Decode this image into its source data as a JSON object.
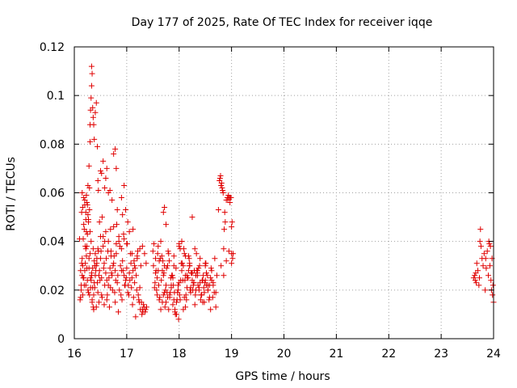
{
  "chart_data": {
    "type": "scatter",
    "title": "Day 177 of 2025, Rate Of TEC Index for receiver iqqe",
    "xlabel": "GPS time / hours",
    "ylabel": "ROTI / TECUs",
    "xlim": [
      16,
      24
    ],
    "ylim": [
      0,
      0.12
    ],
    "xticks": [
      16,
      17,
      18,
      19,
      20,
      21,
      22,
      23,
      24
    ],
    "xtick_labels": [
      "16",
      "17",
      "18",
      "19",
      "20",
      "21",
      "22",
      "23",
      "24"
    ],
    "yticks": [
      0,
      0.02,
      0.04,
      0.06,
      0.08,
      0.1,
      0.12
    ],
    "ytick_labels": [
      "0",
      "0.02",
      "0.04",
      "0.06",
      "0.08",
      "0.1",
      "0.12"
    ],
    "grid": true,
    "marker": "+",
    "color": "#e00000",
    "series": [
      {
        "name": "ROTI",
        "x": [
          16.1,
          16.12,
          16.14,
          16.15,
          16.17,
          16.18,
          16.2,
          16.21,
          16.22,
          16.24,
          16.25,
          16.27,
          16.28,
          16.3,
          16.32,
          16.33,
          16.35,
          16.37,
          16.38,
          16.4,
          16.42,
          16.44,
          16.46,
          16.48,
          16.5,
          16.52,
          16.55,
          16.57,
          16.6,
          16.62,
          16.65,
          16.68,
          16.7,
          16.72,
          16.75,
          16.78,
          16.8,
          16.82,
          16.85,
          16.88,
          16.9,
          16.92,
          16.95,
          16.98,
          17.0,
          17.03,
          17.05,
          17.08,
          17.1,
          17.12,
          17.15,
          17.18,
          17.2,
          17.22,
          17.25,
          17.28,
          17.3,
          17.32,
          17.35,
          17.38,
          16.11,
          16.13,
          16.16,
          16.19,
          16.23,
          16.26,
          16.29,
          16.31,
          16.34,
          16.36,
          16.39,
          16.41,
          16.43,
          16.45,
          16.47,
          16.49,
          16.51,
          16.53,
          16.56,
          16.58,
          16.61,
          16.63,
          16.66,
          16.69,
          16.71,
          16.74,
          16.77,
          16.79,
          16.83,
          16.86,
          16.89,
          16.93,
          16.96,
          16.99,
          17.02,
          17.06,
          17.09,
          17.13,
          17.16,
          17.19,
          17.23,
          17.26,
          17.29,
          17.33,
          17.36,
          16.12,
          16.14,
          16.17,
          16.2,
          16.22,
          16.25,
          16.28,
          16.3,
          16.33,
          16.35,
          16.38,
          16.4,
          16.45,
          16.5,
          16.55,
          16.6,
          16.65,
          16.7,
          16.75,
          16.8,
          16.85,
          16.9,
          16.95,
          17.0,
          17.05,
          17.1,
          17.15,
          17.2,
          17.25,
          17.3,
          16.13,
          16.16,
          16.18,
          16.21,
          16.24,
          16.27,
          16.31,
          16.34,
          16.37,
          16.42,
          16.47,
          16.52,
          16.57,
          16.62,
          16.67,
          16.73,
          16.78,
          16.84,
          16.91,
          16.97,
          17.04,
          17.11,
          17.17,
          17.24,
          17.31,
          16.15,
          16.19,
          16.23,
          16.26,
          16.29,
          16.32,
          16.36,
          16.39,
          16.43,
          16.48,
          16.53,
          16.58,
          16.64,
          16.69,
          16.76,
          16.81,
          16.87,
          16.94,
          17.01,
          17.07,
          17.14,
          17.21,
          17.27,
          17.34,
          17.37,
          16.22,
          16.24,
          16.26,
          16.28,
          16.3,
          16.3,
          16.31,
          16.32,
          16.33,
          16.33,
          16.34,
          16.35,
          16.36,
          16.37,
          16.38,
          16.4,
          16.42,
          16.44,
          16.46,
          16.5,
          16.55,
          16.6,
          16.62,
          16.68,
          16.75,
          16.78,
          16.8,
          16.9,
          16.95,
          16.98,
          16.15,
          16.16,
          16.18,
          16.2,
          16.22,
          16.23,
          16.25,
          16.27,
          16.29,
          16.45,
          16.52,
          16.58,
          16.65,
          16.72,
          16.82,
          16.92,
          17.02,
          17.12,
          17.5,
          17.52,
          17.55,
          17.57,
          17.6,
          17.62,
          17.65,
          17.67,
          17.7,
          17.72,
          17.75,
          17.77,
          17.8,
          17.82,
          17.85,
          17.87,
          17.9,
          17.92,
          17.95,
          17.97,
          18.0,
          18.02,
          18.05,
          18.07,
          18.1,
          18.12,
          18.15,
          18.17,
          18.2,
          18.22,
          18.25,
          18.27,
          18.3,
          18.32,
          18.35,
          18.37,
          18.4,
          18.42,
          18.45,
          18.47,
          18.5,
          18.52,
          18.55,
          18.57,
          18.6,
          18.62,
          18.65,
          18.67,
          18.7,
          18.72,
          17.51,
          17.54,
          17.58,
          17.61,
          17.64,
          17.68,
          17.71,
          17.74,
          17.78,
          17.81,
          17.84,
          17.88,
          17.91,
          17.94,
          17.98,
          18.01,
          18.04,
          18.08,
          18.11,
          18.14,
          18.18,
          18.21,
          18.24,
          18.28,
          18.31,
          18.34,
          18.38,
          18.41,
          18.44,
          18.48,
          18.51,
          18.54,
          18.58,
          18.61,
          18.64,
          18.68,
          17.53,
          17.56,
          17.59,
          17.63,
          17.66,
          17.69,
          17.73,
          17.76,
          17.79,
          17.83,
          17.86,
          17.89,
          17.93,
          17.96,
          17.99,
          18.03,
          18.06,
          18.09,
          18.13,
          18.16,
          18.19,
          18.23,
          18.26,
          18.29,
          18.33,
          18.36,
          18.39,
          18.43,
          18.46,
          18.49,
          17.55,
          17.6,
          17.65,
          17.7,
          17.75,
          17.8,
          17.85,
          17.9,
          17.95,
          18.0,
          18.05,
          18.1,
          18.15,
          18.2,
          18.25,
          18.3,
          18.35,
          18.4,
          18.45,
          18.5,
          18.55,
          18.6,
          18.65,
          18.7,
          17.58,
          17.62,
          17.68,
          17.72,
          17.78,
          17.82,
          17.88,
          17.92,
          17.98,
          18.02,
          18.08,
          18.12,
          18.18,
          18.22,
          18.28,
          18.32,
          18.38,
          18.42,
          18.48,
          18.52,
          18.58,
          18.62,
          17.7,
          17.72,
          17.75,
          17.9,
          18.0,
          18.05,
          18.12,
          18.2,
          18.25,
          18.35,
          18.5,
          18.55,
          18.75,
          18.77,
          18.78,
          18.79,
          18.8,
          18.81,
          18.82,
          18.83,
          18.84,
          18.85,
          18.86,
          18.87,
          18.88,
          18.9,
          18.92,
          18.93,
          18.94,
          18.95,
          18.96,
          18.97,
          18.98,
          18.99,
          19.0,
          19.0,
          19.01,
          19.02,
          19.03,
          18.8,
          18.85,
          18.9,
          18.95,
          19.0,
          23.62,
          23.64,
          23.65,
          23.66,
          23.67,
          23.68,
          23.7,
          23.72,
          23.73,
          23.74,
          23.75,
          23.76,
          23.78,
          23.8,
          23.82,
          23.84,
          23.85,
          23.86,
          23.88,
          23.9,
          23.91,
          23.92,
          23.93,
          23.94,
          23.95,
          23.96,
          23.97,
          23.98,
          23.99,
          24.0
        ],
        "y": [
          0.041,
          0.028,
          0.052,
          0.033,
          0.025,
          0.047,
          0.055,
          0.031,
          0.022,
          0.038,
          0.043,
          0.019,
          0.029,
          0.035,
          0.024,
          0.027,
          0.021,
          0.018,
          0.032,
          0.026,
          0.03,
          0.023,
          0.036,
          0.028,
          0.033,
          0.025,
          0.042,
          0.031,
          0.027,
          0.024,
          0.022,
          0.029,
          0.034,
          0.026,
          0.031,
          0.028,
          0.035,
          0.023,
          0.04,
          0.03,
          0.028,
          0.032,
          0.026,
          0.024,
          0.029,
          0.022,
          0.027,
          0.031,
          0.025,
          0.028,
          0.023,
          0.026,
          0.033,
          0.018,
          0.021,
          0.015,
          0.012,
          0.014,
          0.011,
          0.013,
          0.016,
          0.022,
          0.03,
          0.045,
          0.034,
          0.02,
          0.018,
          0.025,
          0.015,
          0.013,
          0.021,
          0.028,
          0.031,
          0.019,
          0.026,
          0.024,
          0.036,
          0.017,
          0.029,
          0.022,
          0.033,
          0.018,
          0.025,
          0.021,
          0.027,
          0.03,
          0.019,
          0.024,
          0.026,
          0.02,
          0.018,
          0.028,
          0.022,
          0.025,
          0.019,
          0.024,
          0.021,
          0.017,
          0.029,
          0.02,
          0.016,
          0.012,
          0.01,
          0.013,
          0.012,
          0.017,
          0.031,
          0.041,
          0.028,
          0.037,
          0.024,
          0.033,
          0.044,
          0.026,
          0.029,
          0.023,
          0.035,
          0.037,
          0.042,
          0.038,
          0.044,
          0.04,
          0.036,
          0.046,
          0.039,
          0.042,
          0.037,
          0.041,
          0.039,
          0.044,
          0.035,
          0.03,
          0.034,
          0.037,
          0.038,
          0.02,
          0.018,
          0.025,
          0.038,
          0.029,
          0.048,
          0.021,
          0.016,
          0.012,
          0.013,
          0.015,
          0.018,
          0.014,
          0.016,
          0.013,
          0.02,
          0.015,
          0.011,
          0.016,
          0.022,
          0.018,
          0.014,
          0.009,
          0.015,
          0.011,
          0.026,
          0.022,
          0.044,
          0.051,
          0.062,
          0.04,
          0.037,
          0.03,
          0.033,
          0.048,
          0.05,
          0.04,
          0.036,
          0.045,
          0.034,
          0.047,
          0.038,
          0.043,
          0.039,
          0.035,
          0.032,
          0.036,
          0.03,
          0.035,
          0.031,
          0.049,
          0.056,
          0.063,
          0.071,
          0.081,
          0.088,
          0.094,
          0.099,
          0.104,
          0.112,
          0.109,
          0.095,
          0.091,
          0.088,
          0.082,
          0.093,
          0.097,
          0.079,
          0.061,
          0.069,
          0.073,
          0.066,
          0.07,
          0.061,
          0.076,
          0.078,
          0.07,
          0.058,
          0.063,
          0.053,
          0.06,
          0.054,
          0.058,
          0.057,
          0.052,
          0.059,
          0.055,
          0.049,
          0.053,
          0.065,
          0.068,
          0.062,
          0.06,
          0.057,
          0.053,
          0.051,
          0.048,
          0.045,
          0.036,
          0.039,
          0.027,
          0.02,
          0.038,
          0.016,
          0.012,
          0.034,
          0.026,
          0.03,
          0.022,
          0.019,
          0.035,
          0.017,
          0.021,
          0.026,
          0.03,
          0.011,
          0.015,
          0.019,
          0.023,
          0.037,
          0.04,
          0.024,
          0.017,
          0.013,
          0.021,
          0.025,
          0.03,
          0.019,
          0.027,
          0.022,
          0.014,
          0.02,
          0.026,
          0.029,
          0.023,
          0.018,
          0.015,
          0.021,
          0.024,
          0.027,
          0.02,
          0.016,
          0.012,
          0.028,
          0.023,
          0.019,
          0.013,
          0.026,
          0.03,
          0.023,
          0.018,
          0.022,
          0.033,
          0.015,
          0.027,
          0.02,
          0.017,
          0.032,
          0.025,
          0.014,
          0.019,
          0.029,
          0.022,
          0.018,
          0.031,
          0.012,
          0.024,
          0.016,
          0.034,
          0.02,
          0.027,
          0.023,
          0.018,
          0.028,
          0.021,
          0.016,
          0.024,
          0.019,
          0.031,
          0.026,
          0.022,
          0.029,
          0.017,
          0.033,
          0.021,
          0.028,
          0.035,
          0.017,
          0.024,
          0.032,
          0.013,
          0.029,
          0.036,
          0.019,
          0.026,
          0.022,
          0.01,
          0.016,
          0.008,
          0.024,
          0.031,
          0.037,
          0.018,
          0.025,
          0.033,
          0.027,
          0.02,
          0.028,
          0.035,
          0.022,
          0.03,
          0.018,
          0.026,
          0.023,
          0.033,
          0.028,
          0.04,
          0.018,
          0.015,
          0.012,
          0.022,
          0.016,
          0.01,
          0.038,
          0.028,
          0.035,
          0.026,
          0.03,
          0.024,
          0.037,
          0.028,
          0.033,
          0.024,
          0.031,
          0.02,
          0.025,
          0.022,
          0.019,
          0.025,
          0.032,
          0.028,
          0.019,
          0.03,
          0.018,
          0.025,
          0.012,
          0.02,
          0.016,
          0.03,
          0.034,
          0.028,
          0.021,
          0.023,
          0.026,
          0.02,
          0.018,
          0.015,
          0.022,
          0.017,
          0.024,
          0.052,
          0.054,
          0.047,
          0.034,
          0.039,
          0.04,
          0.026,
          0.031,
          0.05,
          0.027,
          0.03,
          0.022,
          0.053,
          0.065,
          0.066,
          0.067,
          0.063,
          0.064,
          0.062,
          0.061,
          0.06,
          0.037,
          0.045,
          0.052,
          0.048,
          0.057,
          0.058,
          0.057,
          0.059,
          0.058,
          0.058,
          0.056,
          0.058,
          0.058,
          0.046,
          0.035,
          0.048,
          0.033,
          0.035,
          0.03,
          0.026,
          0.032,
          0.036,
          0.031,
          0.025,
          0.026,
          0.024,
          0.027,
          0.023,
          0.031,
          0.028,
          0.022,
          0.025,
          0.04,
          0.045,
          0.038,
          0.033,
          0.03,
          0.035,
          0.02,
          0.033,
          0.029,
          0.036,
          0.026,
          0.04,
          0.039,
          0.03,
          0.038,
          0.024,
          0.02,
          0.033,
          0.018,
          0.022,
          0.015
        ]
      }
    ]
  }
}
